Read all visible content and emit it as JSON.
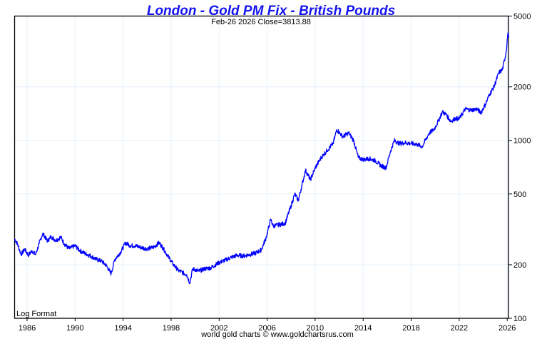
{
  "chart_data": {
    "type": "line",
    "title": "London - Gold PM Fix - British Pounds",
    "subtitle": "Feb-26  2026   Close=3813.88",
    "footer": "world gold charts © www.goldchartsrus.com",
    "scale_note": "Log Format",
    "xlabel": "",
    "ylabel": "",
    "y_scale": "log",
    "ylim": [
      100,
      5000
    ],
    "xlim": [
      1984.95,
      2026.2
    ],
    "y_ticks": [
      100,
      200,
      500,
      1000,
      2000,
      5000
    ],
    "x_ticks": [
      "1986",
      "1990",
      "1994",
      "1998",
      "2002",
      "2006",
      "2010",
      "2014",
      "2018",
      "2022",
      "2026"
    ],
    "grid": true,
    "colors": {
      "title": "#1414f0",
      "series": "#0000ff",
      "grid": "#e4f0fa"
    },
    "series": [
      {
        "name": "Gold PM Fix (GBP)",
        "x": [
          1984.95,
          1985.2,
          1985.5,
          1985.8,
          1986.1,
          1986.4,
          1986.7,
          1987.0,
          1987.3,
          1987.7,
          1988.0,
          1988.4,
          1988.8,
          1989.1,
          1989.5,
          1990.0,
          1990.4,
          1990.8,
          1991.3,
          1991.8,
          1992.2,
          1992.6,
          1993.0,
          1993.3,
          1993.8,
          1994.2,
          1994.6,
          1995.0,
          1995.5,
          1996.0,
          1996.5,
          1997.0,
          1997.3,
          1997.8,
          1998.2,
          1998.6,
          1999.0,
          1999.3,
          1999.55,
          1999.8,
          2000.3,
          2000.8,
          2001.3,
          2002.0,
          2002.5,
          2003.0,
          2003.5,
          2004.0,
          2004.5,
          2005.0,
          2005.5,
          2005.9,
          2006.3,
          2006.5,
          2007.0,
          2007.5,
          2008.0,
          2008.3,
          2008.6,
          2008.9,
          2009.2,
          2009.6,
          2010.0,
          2010.5,
          2011.0,
          2011.5,
          2011.8,
          2012.3,
          2012.8,
          2013.2,
          2013.6,
          2014.0,
          2014.5,
          2015.0,
          2015.5,
          2015.9,
          2016.3,
          2016.6,
          2017.0,
          2017.5,
          2018.0,
          2018.5,
          2018.9,
          2019.5,
          2019.9,
          2020.3,
          2020.6,
          2020.9,
          2021.3,
          2021.7,
          2022.0,
          2022.5,
          2023.0,
          2023.5,
          2023.8,
          2024.2,
          2024.5,
          2024.9,
          2025.3,
          2025.6,
          2025.9,
          2026.05,
          2026.15
        ],
        "values": [
          280,
          262,
          228,
          245,
          226,
          240,
          228,
          262,
          300,
          272,
          288,
          274,
          286,
          262,
          246,
          256,
          240,
          232,
          224,
          214,
          210,
          198,
          178,
          214,
          236,
          266,
          256,
          256,
          250,
          246,
          250,
          266,
          250,
          220,
          200,
          186,
          180,
          176,
          158,
          190,
          184,
          190,
          192,
          206,
          212,
          220,
          226,
          224,
          228,
          232,
          242,
          282,
          360,
          330,
          336,
          342,
          430,
          500,
          460,
          560,
          680,
          600,
          700,
          800,
          880,
          960,
          1150,
          1050,
          1100,
          1000,
          800,
          780,
          790,
          770,
          720,
          700,
          880,
          1000,
          960,
          970,
          960,
          950,
          920,
          1100,
          1150,
          1300,
          1450,
          1400,
          1280,
          1330,
          1320,
          1500,
          1480,
          1500,
          1430,
          1600,
          1800,
          2000,
          2400,
          2500,
          3100,
          3970,
          3814
        ]
      }
    ]
  }
}
